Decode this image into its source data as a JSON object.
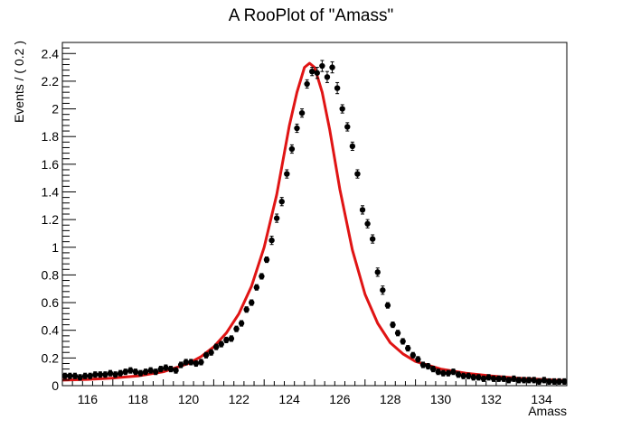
{
  "chart_data": {
    "type": "scatter",
    "title": "A RooPlot of \"Amass\"",
    "xlabel": "Amass",
    "ylabel": "Events / ( 0.2 )",
    "xlim": [
      115,
      135
    ],
    "ylim": [
      0,
      2.48
    ],
    "xticks": [
      116,
      118,
      120,
      122,
      124,
      126,
      128,
      130,
      132,
      134
    ],
    "yticks": [
      0,
      0.2,
      0.4,
      0.6,
      0.8,
      1,
      1.2,
      1.4,
      1.6,
      1.8,
      2,
      2.2,
      2.4
    ],
    "grid": false,
    "series": [
      {
        "kind": "points",
        "color": "#000000",
        "x": [
          115.1,
          115.3,
          115.5,
          115.7,
          115.9,
          116.1,
          116.3,
          116.5,
          116.7,
          116.9,
          117.1,
          117.3,
          117.5,
          117.7,
          117.9,
          118.1,
          118.3,
          118.5,
          118.7,
          118.9,
          119.1,
          119.3,
          119.5,
          119.7,
          119.9,
          120.1,
          120.3,
          120.5,
          120.7,
          120.9,
          121.1,
          121.3,
          121.5,
          121.7,
          121.9,
          122.1,
          122.3,
          122.5,
          122.7,
          122.9,
          123.1,
          123.3,
          123.5,
          123.7,
          123.9,
          124.1,
          124.3,
          124.5,
          124.7,
          124.9,
          125.1,
          125.3,
          125.5,
          125.7,
          125.9,
          126.1,
          126.3,
          126.5,
          126.7,
          126.9,
          127.1,
          127.3,
          127.5,
          127.7,
          127.9,
          128.1,
          128.3,
          128.5,
          128.7,
          128.9,
          129.1,
          129.3,
          129.5,
          129.7,
          129.9,
          130.1,
          130.3,
          130.5,
          130.7,
          130.9,
          131.1,
          131.3,
          131.5,
          131.7,
          131.9,
          132.1,
          132.3,
          132.5,
          132.7,
          132.9,
          133.1,
          133.3,
          133.5,
          133.7,
          133.9,
          134.1,
          134.3,
          134.5,
          134.7,
          134.9
        ],
        "y": [
          0.07,
          0.07,
          0.07,
          0.06,
          0.07,
          0.07,
          0.08,
          0.08,
          0.08,
          0.09,
          0.08,
          0.09,
          0.1,
          0.11,
          0.1,
          0.09,
          0.1,
          0.11,
          0.1,
          0.12,
          0.13,
          0.12,
          0.11,
          0.15,
          0.17,
          0.17,
          0.16,
          0.17,
          0.22,
          0.24,
          0.28,
          0.3,
          0.33,
          0.34,
          0.41,
          0.45,
          0.55,
          0.6,
          0.71,
          0.79,
          0.91,
          1.05,
          1.21,
          1.33,
          1.53,
          1.71,
          1.86,
          1.97,
          2.18,
          2.27,
          2.26,
          2.31,
          2.23,
          2.3,
          2.15,
          2.0,
          1.87,
          1.73,
          1.53,
          1.27,
          1.17,
          1.06,
          0.82,
          0.69,
          0.58,
          0.44,
          0.38,
          0.32,
          0.27,
          0.22,
          0.19,
          0.15,
          0.14,
          0.12,
          0.1,
          0.09,
          0.09,
          0.1,
          0.08,
          0.07,
          0.07,
          0.06,
          0.06,
          0.05,
          0.06,
          0.05,
          0.05,
          0.05,
          0.04,
          0.05,
          0.04,
          0.04,
          0.04,
          0.04,
          0.03,
          0.04,
          0.03,
          0.03,
          0.03,
          0.03
        ],
        "err": [
          0.02,
          0.02,
          0.02,
          0.02,
          0.02,
          0.02,
          0.02,
          0.02,
          0.02,
          0.02,
          0.02,
          0.02,
          0.02,
          0.02,
          0.02,
          0.02,
          0.02,
          0.02,
          0.02,
          0.02,
          0.02,
          0.02,
          0.02,
          0.02,
          0.02,
          0.02,
          0.02,
          0.02,
          0.02,
          0.02,
          0.02,
          0.02,
          0.02,
          0.02,
          0.02,
          0.02,
          0.02,
          0.02,
          0.02,
          0.02,
          0.02,
          0.03,
          0.03,
          0.03,
          0.03,
          0.03,
          0.03,
          0.03,
          0.03,
          0.03,
          0.04,
          0.04,
          0.04,
          0.04,
          0.04,
          0.03,
          0.03,
          0.03,
          0.03,
          0.03,
          0.03,
          0.03,
          0.03,
          0.03,
          0.02,
          0.02,
          0.02,
          0.02,
          0.02,
          0.02,
          0.02,
          0.02,
          0.02,
          0.02,
          0.02,
          0.02,
          0.02,
          0.02,
          0.02,
          0.02,
          0.02,
          0.02,
          0.02,
          0.02,
          0.02,
          0.02,
          0.02,
          0.02,
          0.02,
          0.02,
          0.02,
          0.02,
          0.02,
          0.02,
          0.02,
          0.02,
          0.02,
          0.02,
          0.02,
          0.02
        ]
      },
      {
        "kind": "curve",
        "color": "#e01414",
        "x": [
          115,
          116,
          117,
          118,
          119,
          120,
          120.5,
          121,
          121.5,
          122,
          122.5,
          123,
          123.5,
          124,
          124.3,
          124.6,
          124.8,
          125,
          125.3,
          125.6,
          126,
          126.5,
          127,
          127.5,
          128,
          128.5,
          129,
          130,
          131,
          132,
          133,
          134,
          135
        ],
        "y": [
          0.04,
          0.045,
          0.055,
          0.07,
          0.1,
          0.16,
          0.21,
          0.28,
          0.38,
          0.52,
          0.72,
          1.0,
          1.38,
          1.88,
          2.12,
          2.3,
          2.33,
          2.3,
          2.12,
          1.85,
          1.42,
          0.98,
          0.66,
          0.45,
          0.31,
          0.23,
          0.175,
          0.12,
          0.09,
          0.07,
          0.055,
          0.045,
          0.035
        ]
      }
    ]
  }
}
